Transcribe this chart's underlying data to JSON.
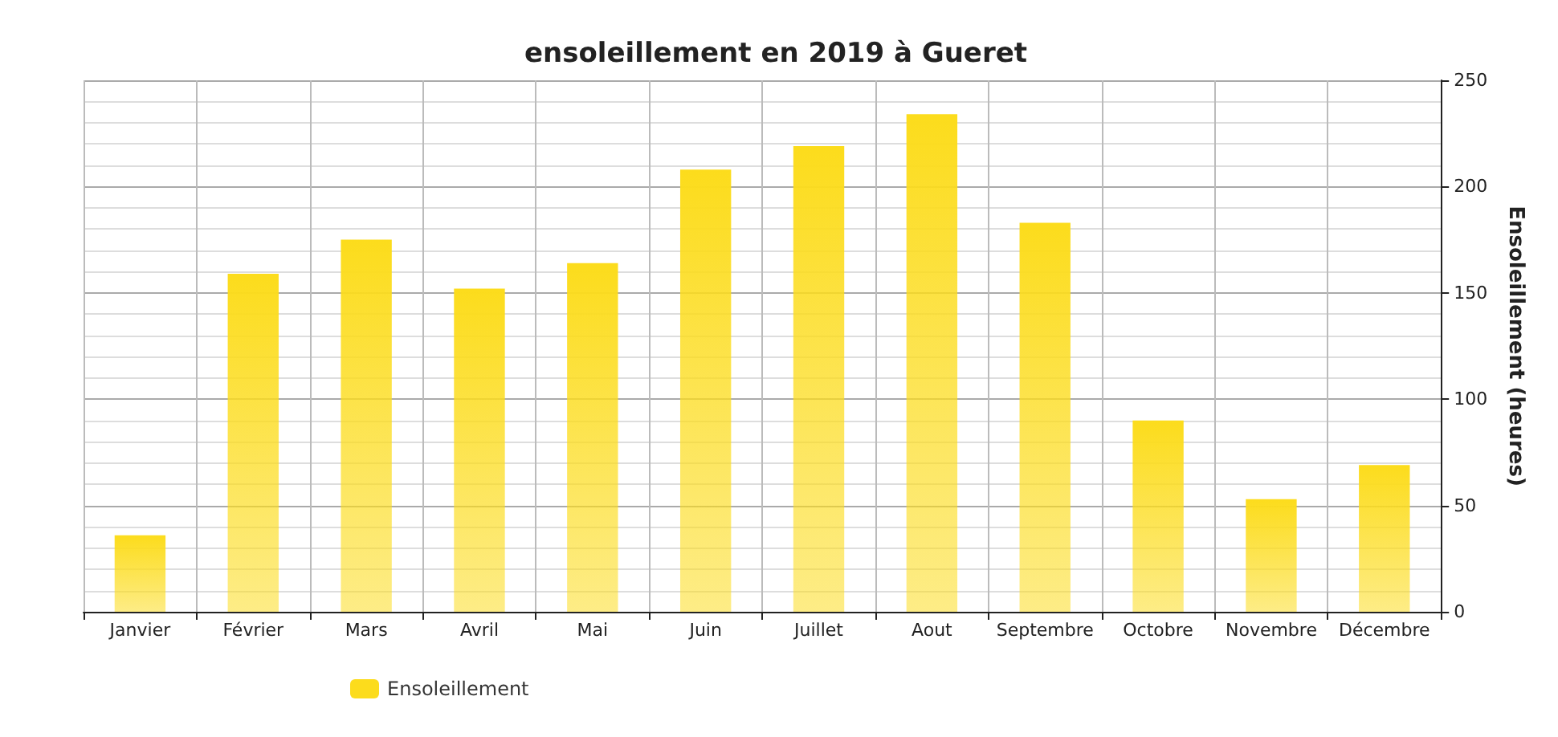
{
  "chart_data": {
    "type": "bar",
    "title": "ensoleillement en 2019 à Gueret",
    "ylabel": "Ensoleillement (heures)",
    "categories": [
      "Janvier",
      "Février",
      "Mars",
      "Avril",
      "Mai",
      "Juin",
      "Juillet",
      "Aout",
      "Septembre",
      "Octobre",
      "Novembre",
      "Décembre"
    ],
    "series": [
      {
        "name": "Ensoleillement",
        "color": "#fcdc1c",
        "values": [
          36,
          159,
          175,
          152,
          164,
          208,
          219,
          234,
          183,
          90,
          53,
          69
        ]
      }
    ],
    "ylim": [
      0,
      250
    ],
    "yticks": [
      0,
      50,
      100,
      150,
      200,
      250
    ],
    "grid": true,
    "legend": "bottom left"
  }
}
